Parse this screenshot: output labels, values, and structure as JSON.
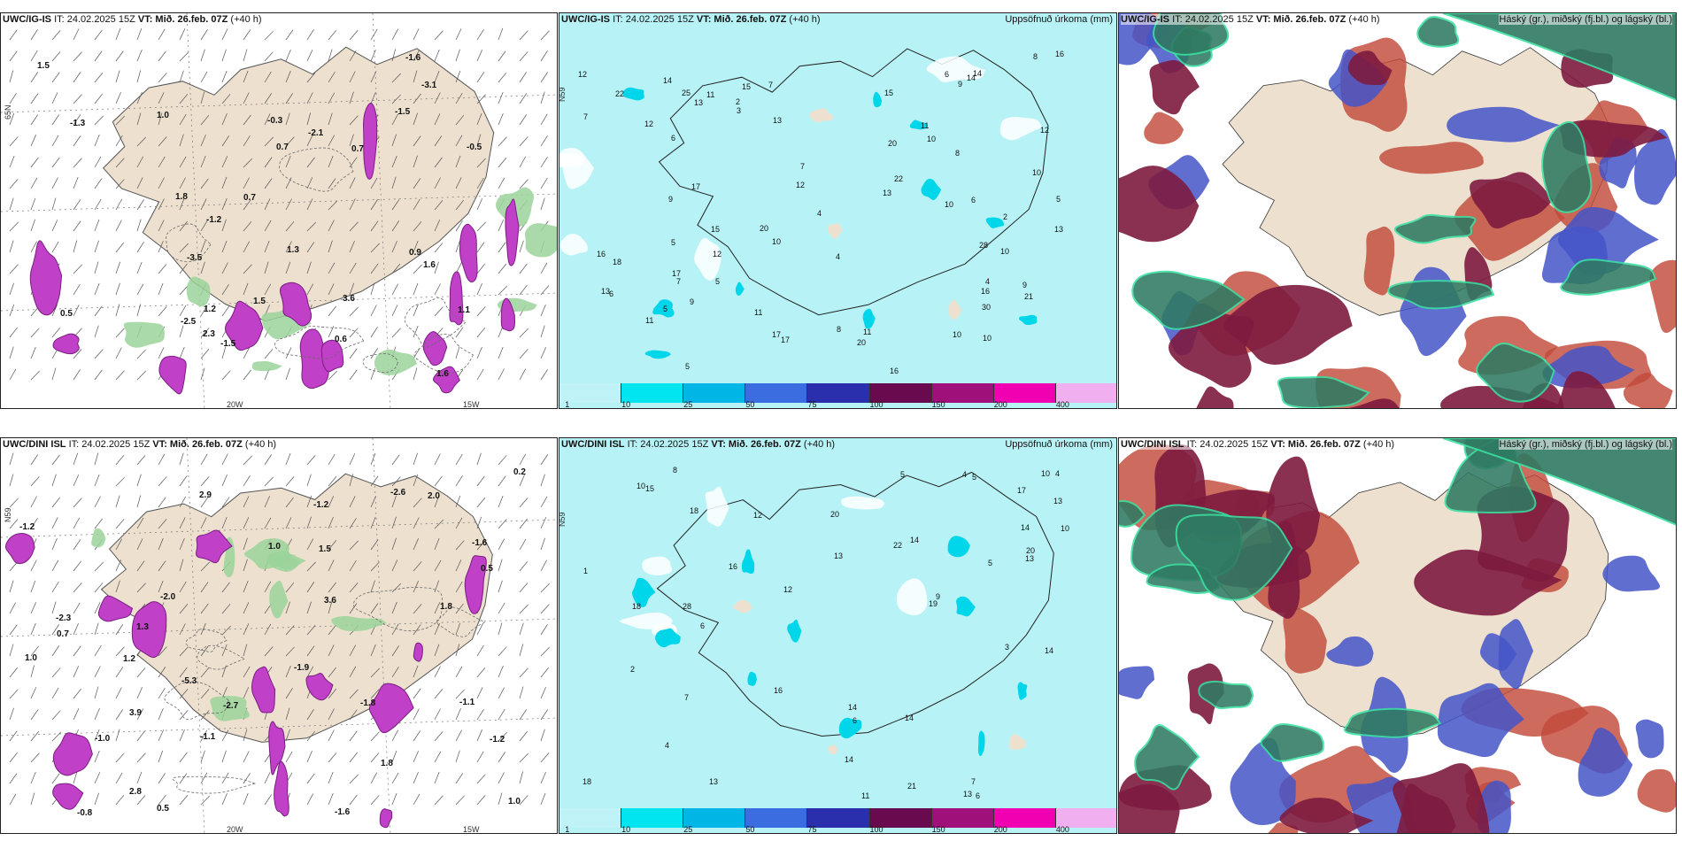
{
  "top_row": {
    "wind_panel": {
      "model": "UWC/IG-IS",
      "it": "IT: 24.02.2025 15Z",
      "vt_label": "VT:",
      "vt": "Mið. 26.feb. 07Z",
      "lead": "(+40 h)",
      "lon_labels": [
        "20W",
        "15W"
      ],
      "lat_label": "65N",
      "values": [
        "-0.5",
        "-1.3",
        "-1.5",
        "-2.5",
        "-3.5",
        "1.6",
        "0.7",
        "0.7",
        "-2.1",
        "-3.1",
        "-1.6",
        "1.8",
        "1.3",
        "3.6",
        "2.3",
        "1.5",
        "-1.5",
        "0.5",
        "0.6",
        "1.2",
        "0.9",
        "0.7",
        "1.1",
        "1.6",
        "1.5",
        "1.0",
        "-0.3",
        "-1.2"
      ]
    },
    "precip_panel": {
      "model": "UWC/IG-IS",
      "it": "IT: 24.02.2025 15Z",
      "vt_label": "VT:",
      "vt": "Mið. 26.feb. 07Z",
      "lead": "(+40 h)",
      "title": "Uppsöfnuð úrkoma (mm)",
      "lat_label": "N59",
      "values": [
        "6",
        "2",
        "4",
        "5",
        "3",
        "2",
        "16",
        "10",
        "12",
        "10",
        "13",
        "21",
        "16",
        "15",
        "11",
        "9",
        "7",
        "14",
        "16",
        "8",
        "9",
        "11",
        "11",
        "25",
        "10",
        "9",
        "18",
        "7",
        "12",
        "28",
        "30",
        "8",
        "8",
        "14",
        "12",
        "11",
        "10",
        "13",
        "22",
        "17",
        "15",
        "17",
        "4",
        "5",
        "20",
        "5",
        "10",
        "7",
        "4",
        "13",
        "13",
        "14",
        "7",
        "17",
        "17",
        "12",
        "13",
        "11",
        "9",
        "10",
        "5",
        "16",
        "15",
        "20",
        "22",
        "20",
        "10",
        "5",
        "12",
        "6",
        "6",
        "6"
      ]
    },
    "cloud_panel": {
      "model": "UWC/IG-IS",
      "it": "IT: 24.02.2025 15Z",
      "vt_label": "VT:",
      "vt": "Mið. 26.feb. 07Z",
      "lead": "(+40 h)",
      "title": "Háský (gr.), miðský (fj.bl.) og lágský (bl.)"
    }
  },
  "bottom_row": {
    "wind_panel": {
      "model": "UWC/DINI ISL",
      "it": "IT: 24.02.2025 15Z",
      "vt_label": "VT:",
      "vt": "Mið. 26.feb. 07Z",
      "lead": "(+40 h)",
      "lon_labels": [
        "20W",
        "15W"
      ],
      "lat_label": "N59",
      "values": [
        "-2.7",
        "-2.6",
        "-1.2",
        "-1.6",
        "-2.0",
        "-1.1",
        "1.8",
        "-1.1",
        "-1.0",
        "-1.9",
        "-5.3",
        "-2.3",
        "2.9",
        "1.0",
        "1.0",
        "1.5",
        "2.8",
        "3.9",
        "3.6",
        "2.0",
        "-0.8",
        "1.8",
        "-1.6",
        "-1.2",
        "0.5",
        "0.2",
        "1.2",
        "-1.2",
        "1.3",
        "0.7",
        "1.0",
        "-1.8",
        "0.5"
      ]
    },
    "precip_panel": {
      "model": "UWC/DINI ISL",
      "it": "IT: 24.02.2025 15Z",
      "vt_label": "VT:",
      "vt": "Mið. 26.feb. 07Z",
      "lead": "(+40 h)",
      "title": "Uppsöfnuð úrkoma (mm)",
      "lat_label": "N59",
      "values": [
        "6",
        "4",
        "1",
        "4",
        "13",
        "20",
        "13",
        "14",
        "18",
        "15",
        "20",
        "14",
        "22",
        "10",
        "8",
        "7",
        "5",
        "10",
        "14",
        "10",
        "18",
        "12",
        "17",
        "16",
        "14",
        "13",
        "13",
        "21",
        "12",
        "19",
        "18",
        "11",
        "13",
        "28",
        "14",
        "14",
        "16",
        "5",
        "2",
        "9",
        "4",
        "6",
        "5",
        "6",
        "7",
        "3"
      ]
    },
    "cloud_panel": {
      "model": "UWC/DINI ISL",
      "it": "IT: 24.02.2025 15Z",
      "vt_label": "VT:",
      "vt": "Mið. 26.feb. 07Z",
      "lead": "(+40 h)",
      "title": "Háský (gr.), miðský (fj.bl.) og lágský (bl.)"
    }
  },
  "precip_colorbar": {
    "ticks": [
      "1",
      "10",
      "25",
      "50",
      "75",
      "100",
      "150",
      "200",
      "400"
    ],
    "colors": [
      "#bff3f7",
      "#00e5ef",
      "#00b6e6",
      "#3b6de0",
      "#2a2fae",
      "#6a0a4e",
      "#a0107a",
      "#f000b0",
      "#f0b0f0"
    ]
  },
  "colors": {
    "land": "#ede0cf",
    "sea_precip": "#b7f3f6",
    "wind_magenta": "#c040c8",
    "cloud_high_green": "#2f7a62",
    "cloud_mid_maroon": "#7d1b3f",
    "cloud_low_blue": "#4455c8",
    "cloud_red": "#c24a3a"
  }
}
